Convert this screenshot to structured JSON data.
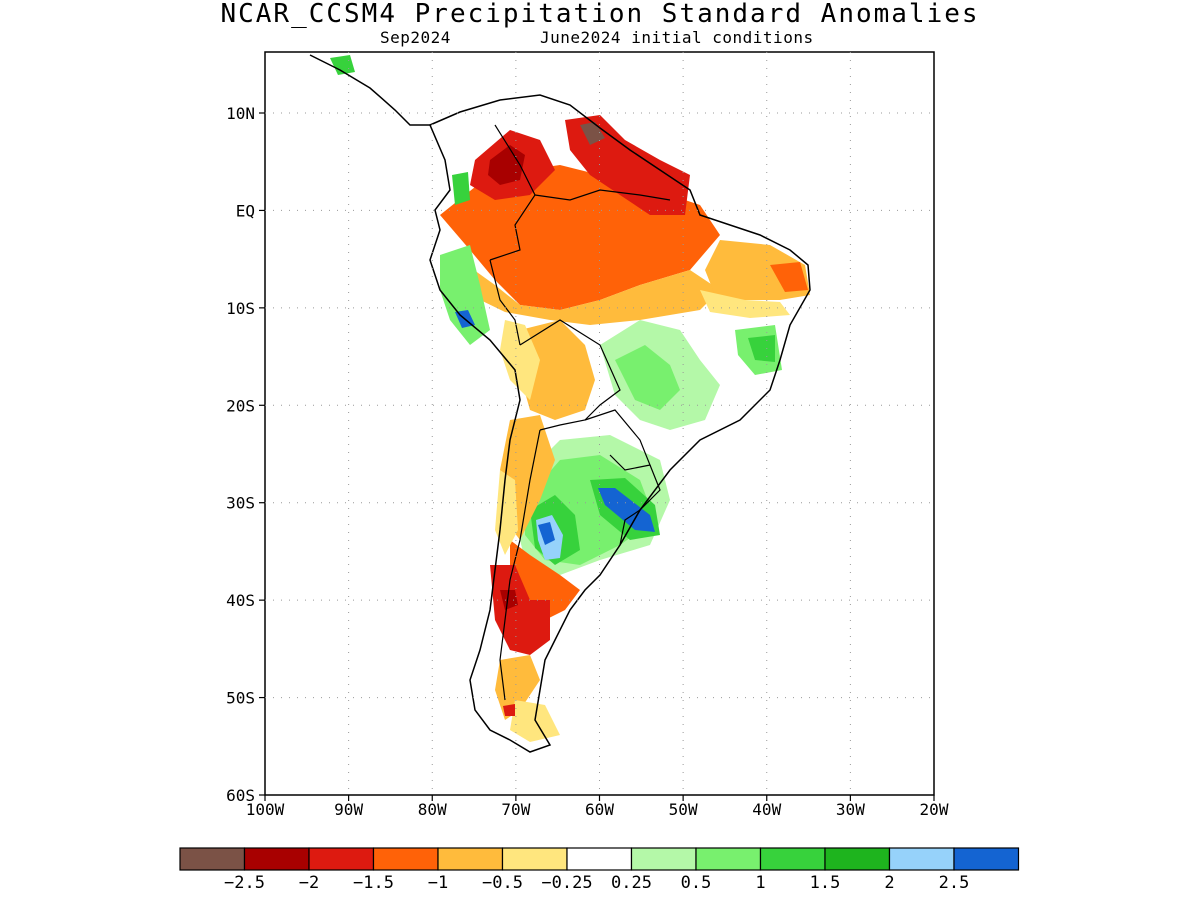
{
  "title": "NCAR_CCSM4 Precipitation Standard Anomalies",
  "subtitle_left": "Sep2024",
  "subtitle_right": "June2024 initial conditions",
  "axes": {
    "lon_ticks": [
      "100W",
      "90W",
      "80W",
      "70W",
      "60W",
      "50W",
      "40W",
      "30W",
      "20W"
    ],
    "lat_ticks": [
      "10N",
      "EQ",
      "10S",
      "20S",
      "30S",
      "40S",
      "50S",
      "60S"
    ]
  },
  "colorbar": {
    "colors": [
      "#7b5246",
      "#a80000",
      "#dd1a10",
      "#ff6208",
      "#ffbb3c",
      "#ffe67e",
      "#ffffff",
      "#b4f8a8",
      "#78f06e",
      "#37d23c",
      "#1eb41e",
      "#96d2fa",
      "#1464d2"
    ],
    "labels": [
      "−2.5",
      "−2",
      "−1.5",
      "−1",
      "−0.5",
      "−0.25",
      "0.25",
      "0.5",
      "1",
      "1.5",
      "2",
      "2.5"
    ]
  }
}
